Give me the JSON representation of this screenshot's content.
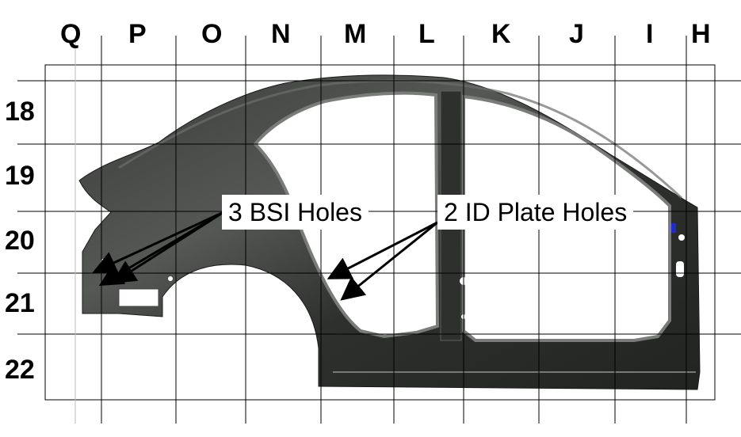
{
  "grid": {
    "columns": [
      "Q",
      "P",
      "O",
      "N",
      "M",
      "L",
      "K",
      "J",
      "I",
      "H"
    ],
    "rows": [
      "18",
      "19",
      "20",
      "21",
      "22"
    ]
  },
  "callouts": {
    "bsi": "3 BSI Holes",
    "id_plate": "2 ID Plate Holes"
  },
  "colors": {
    "panel": "#2b2d2b",
    "panel_highlight": "#6b6e6b",
    "grid_line": "#000000",
    "accent": "#1e2bd6"
  }
}
